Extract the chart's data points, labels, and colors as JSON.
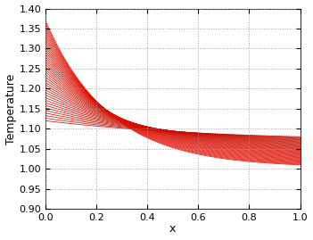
{
  "x_min": 0.0,
  "x_max": 1.0,
  "y_min": 0.9,
  "y_max": 1.4,
  "xlabel": "x",
  "ylabel": "Temperature",
  "n_curves": 40,
  "yticks": [
    0.9,
    0.95,
    1.0,
    1.05,
    1.1,
    1.15,
    1.2,
    1.25,
    1.3,
    1.35,
    1.4
  ],
  "xticks": [
    0,
    0.2,
    0.4,
    0.6,
    0.8,
    1.0
  ],
  "background_color": "#ffffff",
  "grid_color": "#999999",
  "line_color": "#cc2200",
  "T_converge": 1.08,
  "T0_min": 1.12,
  "T0_max": 1.37,
  "T1_min": 1.08,
  "T1_max": 1.01,
  "decay_base": 3.0
}
